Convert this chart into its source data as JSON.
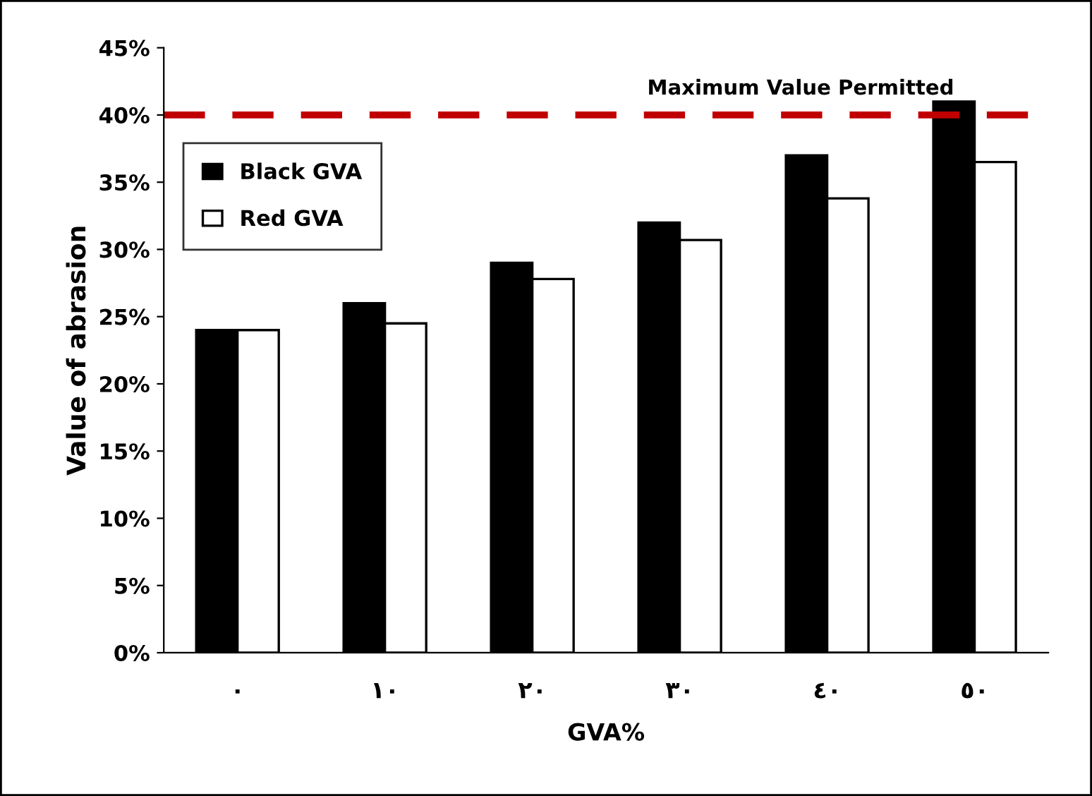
{
  "chart_data": {
    "type": "bar",
    "xlabel": "GVA%",
    "ylabel": "Value of abrasion",
    "categories": [
      "٠",
      "١٠",
      "٢٠",
      "٣٠",
      "٤٠",
      "٥٠"
    ],
    "series": [
      {
        "name": "Black GVA",
        "color": "#000000",
        "values": [
          24,
          26,
          29,
          32,
          37,
          41
        ]
      },
      {
        "name": "Red GVA",
        "color": "#ffffff",
        "values": [
          24,
          24.5,
          27.8,
          30.7,
          33.8,
          36.5
        ]
      }
    ],
    "ylim": [
      0,
      45
    ],
    "yticks": [
      {
        "value": 0,
        "label": "0%"
      },
      {
        "value": 5,
        "label": "5%"
      },
      {
        "value": 10,
        "label": "10%"
      },
      {
        "value": 15,
        "label": "15%"
      },
      {
        "value": 20,
        "label": "20%"
      },
      {
        "value": 25,
        "label": "25%"
      },
      {
        "value": 30,
        "label": "30%"
      },
      {
        "value": 35,
        "label": "35%"
      },
      {
        "value": 40,
        "label": "40%"
      },
      {
        "value": 45,
        "label": "45%"
      }
    ],
    "ref_lines": [
      {
        "axis": "y",
        "value": 40,
        "label": "Maximum Value Permitted",
        "color": "#c00000",
        "line_style": "dashed"
      }
    ],
    "legend": "top left",
    "grid": false
  }
}
